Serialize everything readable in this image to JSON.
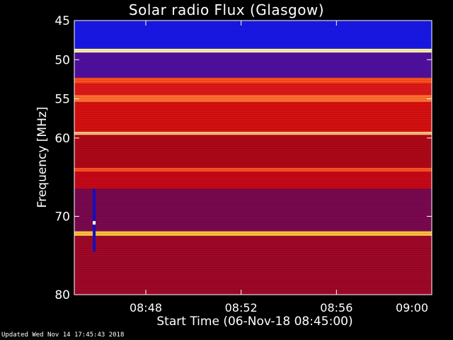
{
  "title": "Solar radio Flux (Glasgow)",
  "xlabel": "Start Time (06-Nov-18 08:45:00)",
  "ylabel": "Frequency [MHz]",
  "footer": "Updated Wed Nov 14 17:45:43 2018",
  "chart_data": {
    "type": "heatmap",
    "title": "Solar radio Flux (Glasgow)",
    "xlabel": "Start Time (06-Nov-18 08:45:00)",
    "ylabel": "Frequency [MHz]",
    "x_range": [
      "08:45:00",
      "09:00:00"
    ],
    "y_range_mhz": [
      45,
      80
    ],
    "y_inverted": true,
    "x_ticks": [
      "08:48",
      "08:52",
      "08:56",
      "09:00"
    ],
    "x_tick_minutes_from_start": [
      3,
      7,
      11,
      15
    ],
    "y_ticks": [
      45,
      50,
      55,
      60,
      70,
      80
    ],
    "colormap": "blue-red-yellow-white (low to high flux)",
    "bands": [
      {
        "from_mhz": 45.0,
        "to_mhz": 48.6,
        "level": "low",
        "color": "#1818e8"
      },
      {
        "from_mhz": 48.6,
        "to_mhz": 49.1,
        "level": "peak",
        "color": "#fff0b0"
      },
      {
        "from_mhz": 49.1,
        "to_mhz": 52.3,
        "level": "low-mid",
        "color": "#5010a0"
      },
      {
        "from_mhz": 52.3,
        "to_mhz": 53.0,
        "level": "high",
        "color": "#ff5020"
      },
      {
        "from_mhz": 53.0,
        "to_mhz": 54.5,
        "level": "high",
        "color": "#e01818"
      },
      {
        "from_mhz": 54.5,
        "to_mhz": 55.4,
        "level": "high",
        "color": "#ff7030"
      },
      {
        "from_mhz": 55.4,
        "to_mhz": 59.2,
        "level": "mid-high",
        "color": "#d81010"
      },
      {
        "from_mhz": 59.2,
        "to_mhz": 59.6,
        "level": "peak",
        "color": "#ffc080"
      },
      {
        "from_mhz": 59.6,
        "to_mhz": 63.8,
        "level": "mid",
        "color": "#b00818"
      },
      {
        "from_mhz": 63.8,
        "to_mhz": 64.3,
        "level": "high",
        "color": "#ff5020"
      },
      {
        "from_mhz": 64.3,
        "to_mhz": 66.5,
        "level": "mid",
        "color": "#c80818"
      },
      {
        "from_mhz": 66.5,
        "to_mhz": 71.9,
        "level": "low-mid",
        "color": "#7a0850"
      },
      {
        "from_mhz": 71.9,
        "to_mhz": 72.5,
        "level": "peak",
        "color": "#ffc040"
      },
      {
        "from_mhz": 72.5,
        "to_mhz": 80.0,
        "level": "mid",
        "color": "#a00828"
      }
    ],
    "features": [
      {
        "type": "vertical burst",
        "time": "08:45:50",
        "freq_range_mhz": [
          66.5,
          74.5
        ]
      }
    ]
  }
}
